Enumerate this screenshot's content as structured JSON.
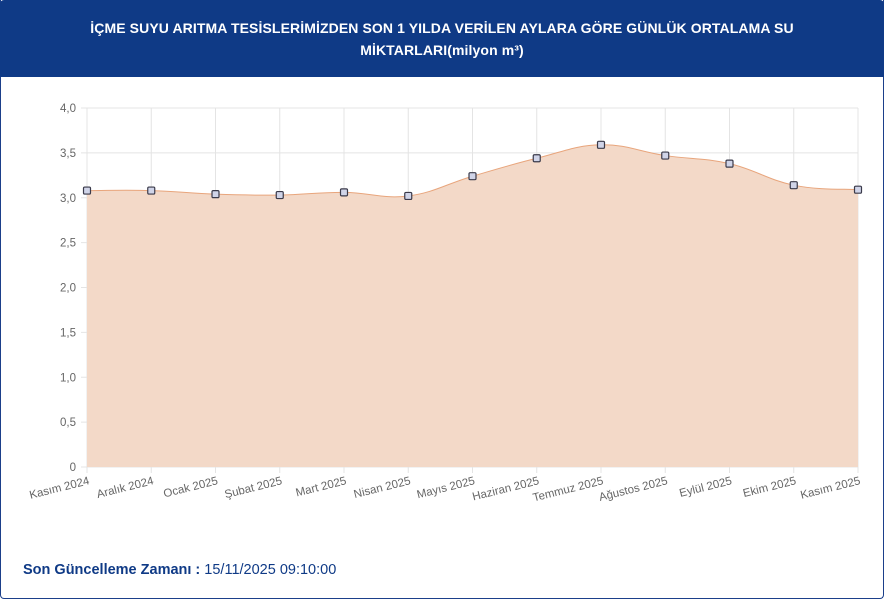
{
  "header": {
    "title_line1": "İÇME SUYU ARITMA TESİSLERİMİZDEN SON 1 YILDA VERİLEN AYLARA GÖRE GÜNLÜK ORTALAMA SU",
    "title_line2": "MİKTARLARI(milyon m³)"
  },
  "footer": {
    "label": "Son Güncelleme Zamanı :",
    "value": " 15/11/2025 09:10:00"
  },
  "colors": {
    "header_bg": "#0f3a86",
    "area_fill": "#f3d9c8",
    "line": "#e8a57c",
    "marker_fill": "#d0d4e8",
    "marker_stroke": "#3a3a4a",
    "grid": "#e4e4e4"
  },
  "chart_data": {
    "type": "area",
    "categories": [
      "Kasım 2024",
      "Aralık 2024",
      "Ocak 2025",
      "Şubat 2025",
      "Mart 2025",
      "Nisan 2025",
      "Mayıs 2025",
      "Haziran 2025",
      "Temmuz 2025",
      "Ağustos 2025",
      "Eylül 2025",
      "Ekim 2025",
      "Kasım 2025"
    ],
    "values": [
      3.08,
      3.08,
      3.04,
      3.03,
      3.06,
      3.02,
      3.24,
      3.44,
      3.59,
      3.47,
      3.38,
      3.14,
      3.09
    ],
    "ylim": [
      0,
      4
    ],
    "yticks": [
      "0",
      "0,5",
      "1,0",
      "1,5",
      "2,0",
      "2,5",
      "3,0",
      "3,5",
      "4,0"
    ],
    "grid": true
  }
}
